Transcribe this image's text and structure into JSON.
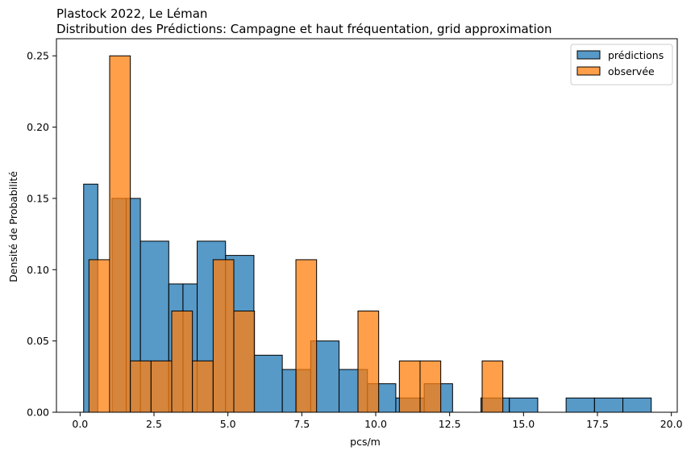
{
  "chart_data": {
    "type": "bar",
    "title": "Plastock 2022, Le Léman",
    "subtitle": "Distribution des Prédictions: Campagne et haut fréquentation, grid approximation",
    "xlabel": "pcs/m",
    "ylabel": "Densité de Probabilité",
    "xlim": [
      -0.8,
      20.2
    ],
    "ylim": [
      0,
      0.262
    ],
    "xticks": [
      0.0,
      2.5,
      5.0,
      7.5,
      10.0,
      12.5,
      15.0,
      17.5,
      20.0
    ],
    "xtick_labels": [
      "0.0",
      "2.5",
      "5.0",
      "7.5",
      "10.0",
      "12.5",
      "15.0",
      "17.5",
      "20.0"
    ],
    "yticks": [
      0.0,
      0.05,
      0.1,
      0.15,
      0.2,
      0.25
    ],
    "ytick_labels": [
      "0.00",
      "0.05",
      "0.10",
      "0.15",
      "0.20",
      "0.25"
    ],
    "grid": false,
    "legend_position": "top-right",
    "series": [
      {
        "name": "prédictions",
        "color": "#1f77b4",
        "alpha": 0.75,
        "bins": [
          {
            "x0": 0.12,
            "x1": 0.6,
            "height": 0.16
          },
          {
            "x0": 0.6,
            "x1": 1.08,
            "height": 0.0
          },
          {
            "x0": 1.08,
            "x1": 1.56,
            "height": 0.15
          },
          {
            "x0": 1.56,
            "x1": 2.04,
            "height": 0.15
          },
          {
            "x0": 2.04,
            "x1": 3.0,
            "height": 0.12
          },
          {
            "x0": 3.0,
            "x1": 3.48,
            "height": 0.09
          },
          {
            "x0": 3.48,
            "x1": 3.96,
            "height": 0.09
          },
          {
            "x0": 3.96,
            "x1": 4.92,
            "height": 0.12
          },
          {
            "x0": 4.92,
            "x1": 5.88,
            "height": 0.11
          },
          {
            "x0": 5.88,
            "x1": 6.84,
            "height": 0.04
          },
          {
            "x0": 6.84,
            "x1": 7.32,
            "height": 0.03
          },
          {
            "x0": 7.32,
            "x1": 7.8,
            "height": 0.03
          },
          {
            "x0": 7.8,
            "x1": 8.76,
            "height": 0.05
          },
          {
            "x0": 8.76,
            "x1": 9.72,
            "height": 0.03
          },
          {
            "x0": 9.72,
            "x1": 10.68,
            "height": 0.02
          },
          {
            "x0": 10.68,
            "x1": 11.64,
            "height": 0.01
          },
          {
            "x0": 11.64,
            "x1": 12.6,
            "height": 0.02
          },
          {
            "x0": 13.56,
            "x1": 14.52,
            "height": 0.01
          },
          {
            "x0": 14.52,
            "x1": 15.48,
            "height": 0.01
          },
          {
            "x0": 16.44,
            "x1": 17.4,
            "height": 0.01
          },
          {
            "x0": 17.4,
            "x1": 18.36,
            "height": 0.01
          },
          {
            "x0": 18.36,
            "x1": 19.32,
            "height": 0.01
          }
        ]
      },
      {
        "name": "observée",
        "color": "#ff7f0e",
        "alpha": 0.75,
        "bins": [
          {
            "x0": 0.3,
            "x1": 1.0,
            "height": 0.107
          },
          {
            "x0": 1.0,
            "x1": 1.7,
            "height": 0.25
          },
          {
            "x0": 1.7,
            "x1": 2.4,
            "height": 0.036
          },
          {
            "x0": 2.4,
            "x1": 3.1,
            "height": 0.036
          },
          {
            "x0": 3.1,
            "x1": 3.8,
            "height": 0.071
          },
          {
            "x0": 3.8,
            "x1": 4.5,
            "height": 0.036
          },
          {
            "x0": 4.5,
            "x1": 5.2,
            "height": 0.107
          },
          {
            "x0": 5.2,
            "x1": 5.9,
            "height": 0.071
          },
          {
            "x0": 7.3,
            "x1": 8.0,
            "height": 0.107
          },
          {
            "x0": 9.4,
            "x1": 10.1,
            "height": 0.071
          },
          {
            "x0": 10.8,
            "x1": 11.5,
            "height": 0.036
          },
          {
            "x0": 11.5,
            "x1": 12.2,
            "height": 0.036
          },
          {
            "x0": 13.6,
            "x1": 14.3,
            "height": 0.036
          }
        ]
      }
    ]
  }
}
